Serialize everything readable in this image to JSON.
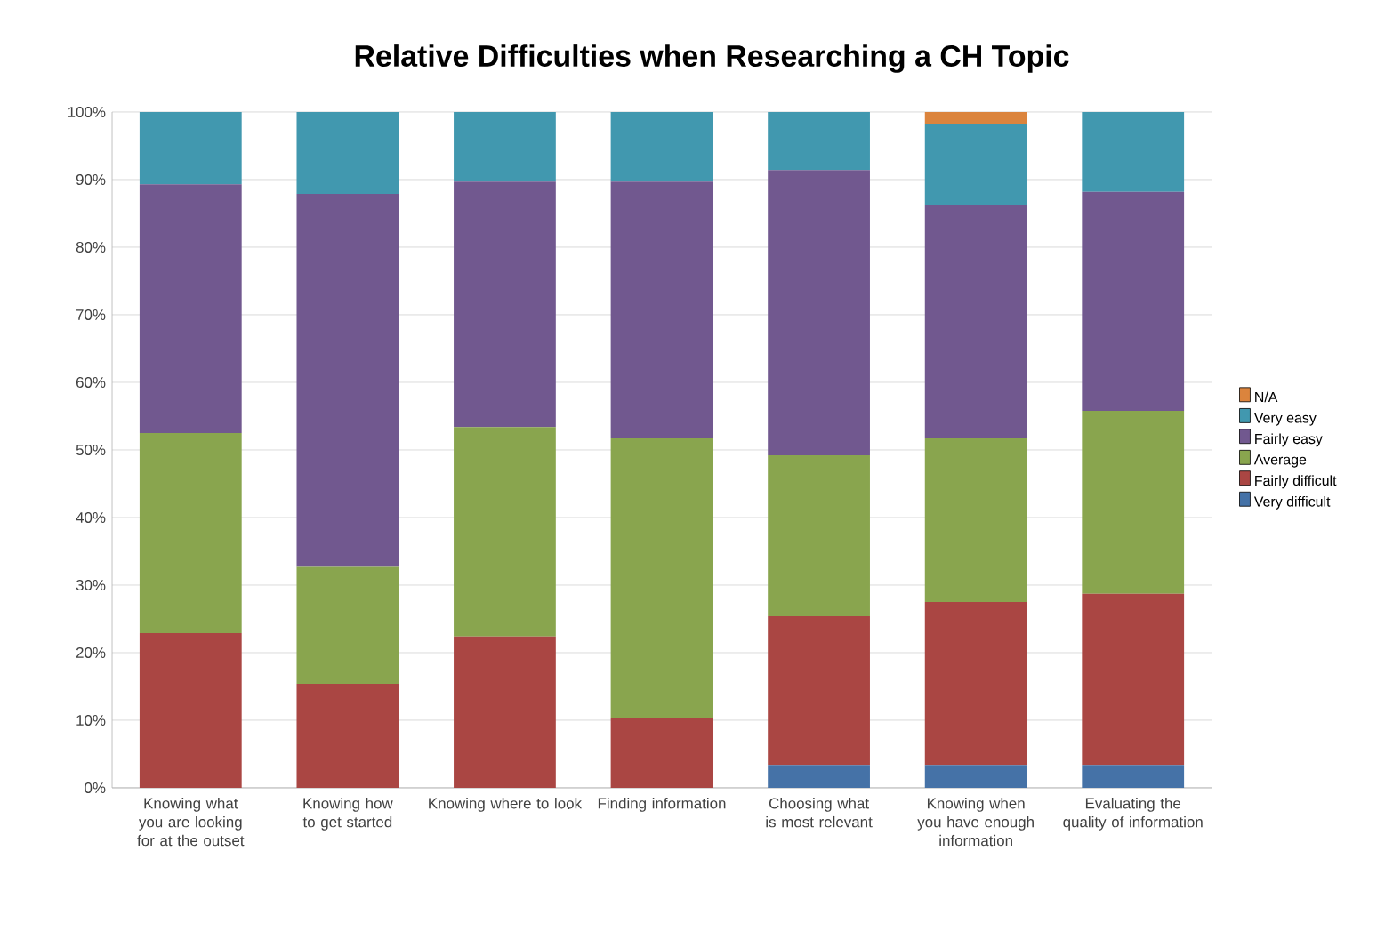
{
  "chart_data": {
    "type": "bar",
    "title": "Relative Difficulties when Researching a CH Topic",
    "categories": [
      "Knowing what you are looking for at the outset",
      "Knowing how to get started",
      "Knowing where to look",
      "Finding information",
      "Choosing what is most relevant",
      "Knowing when you have enough information",
      "Evaluating the quality of information"
    ],
    "stacked": true,
    "series": [
      {
        "name": "Very difficult",
        "color": "#4572a7",
        "values": [
          0,
          0,
          0,
          0,
          3.4,
          3.4,
          3.4
        ]
      },
      {
        "name": "Fairly difficult",
        "color": "#aa4643",
        "values": [
          22.9,
          15.4,
          22.4,
          10.3,
          22.0,
          24.1,
          25.3
        ]
      },
      {
        "name": "Average",
        "color": "#89a54e",
        "values": [
          29.6,
          17.3,
          31.0,
          41.4,
          23.8,
          24.2,
          27.1
        ]
      },
      {
        "name": "Fairly easy",
        "color": "#71588f",
        "values": [
          36.8,
          55.2,
          36.3,
          38.0,
          42.2,
          34.5,
          32.4
        ]
      },
      {
        "name": "Very easy",
        "color": "#4198af",
        "values": [
          10.7,
          12.1,
          10.3,
          10.3,
          8.6,
          12.0,
          11.8
        ]
      },
      {
        "name": "N/A",
        "color": "#db843d",
        "values": [
          0,
          0,
          0,
          0,
          0,
          1.8,
          0
        ]
      }
    ],
    "ylim": [
      0,
      100
    ],
    "yticks": [
      {
        "value": 0,
        "label": "0%"
      },
      {
        "value": 10,
        "label": "10%"
      },
      {
        "value": 20,
        "label": "20%"
      },
      {
        "value": 30,
        "label": "30%"
      },
      {
        "value": 40,
        "label": "40%"
      },
      {
        "value": 50,
        "label": "50%"
      },
      {
        "value": 60,
        "label": "60%"
      },
      {
        "value": 70,
        "label": "70%"
      },
      {
        "value": 80,
        "label": "80%"
      },
      {
        "value": 90,
        "label": "90%"
      },
      {
        "value": 100,
        "label": "100%"
      }
    ],
    "grid": "y",
    "legend": "right"
  }
}
